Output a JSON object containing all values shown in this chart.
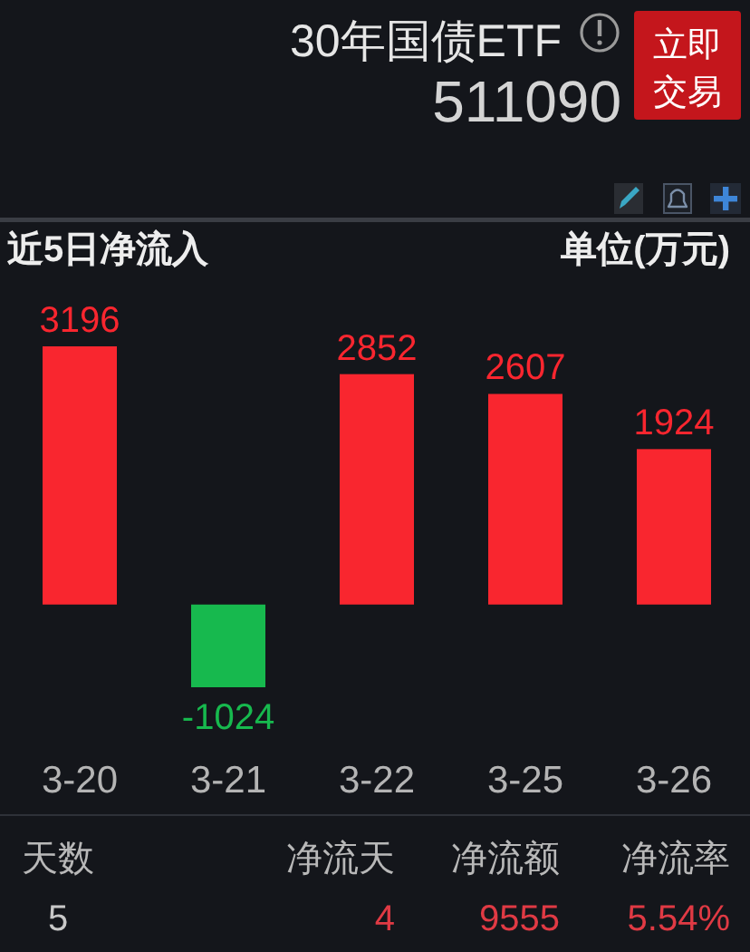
{
  "chart_data": {
    "type": "bar",
    "title": "近5日净流入",
    "ylabel": "单位(万元)",
    "categories": [
      "3-20",
      "3-21",
      "3-22",
      "3-25",
      "3-26"
    ],
    "values": [
      3196,
      -1024,
      2852,
      2607,
      1924
    ],
    "colors": [
      "#f9262f",
      "#17b94e",
      "#f9262f",
      "#f9262f",
      "#f9262f"
    ],
    "data_labels": true,
    "annotations": [
      "30年国债ETF",
      "511090",
      "立即交易",
      "天数",
      "5",
      "净流天",
      "4",
      "净流额",
      "9555",
      "净流率",
      "5.54%"
    ]
  }
}
